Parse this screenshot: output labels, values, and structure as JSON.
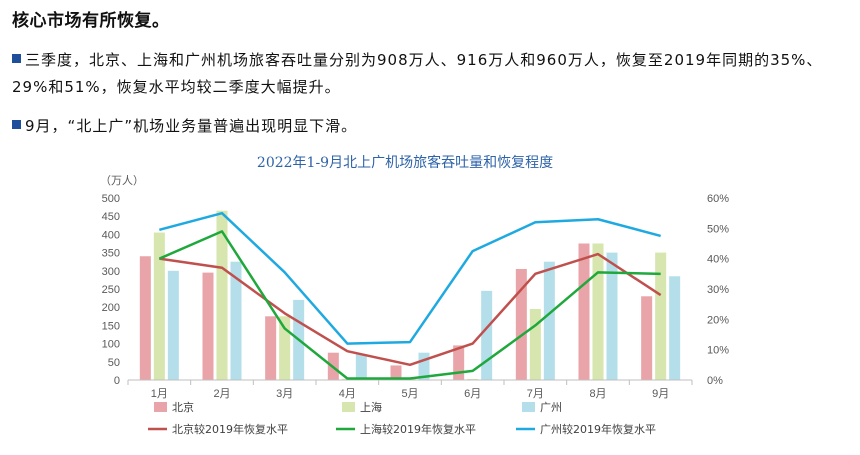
{
  "heading": "核心市场有所恢复。",
  "bullets": [
    "三季度，北京、上海和广州机场旅客吞吐量分别为908万人、916万人和960万人，恢复至2019年同期的35%、29%和51%，恢复水平均较二季度大幅提升。",
    "9月，“北上广”机场业务量普遍出现明显下滑。"
  ],
  "chart_data": {
    "type": "bar",
    "title": "2022年1-9月北上广机场旅客吞吐量和恢复程度",
    "ylabel": "（万人）",
    "categories": [
      "1月",
      "2月",
      "3月",
      "4月",
      "5月",
      "6月",
      "7月",
      "8月",
      "9月"
    ],
    "ylim": [
      0,
      500
    ],
    "y_ticks": [
      "0",
      "50",
      "100",
      "150",
      "200",
      "250",
      "300",
      "350",
      "400",
      "450",
      "500"
    ],
    "y2lim": [
      0,
      60
    ],
    "y2_ticks": [
      "0%",
      "10%",
      "20%",
      "30%",
      "40%",
      "50%",
      "60%"
    ],
    "series": [
      {
        "name": "北京",
        "kind": "bar",
        "axis": "left",
        "color": "#e8a4a8",
        "values": [
          340,
          295,
          175,
          75,
          40,
          95,
          305,
          375,
          230
        ]
      },
      {
        "name": "上海",
        "kind": "bar",
        "axis": "left",
        "color": "#d6e6ae",
        "values": [
          405,
          465,
          175,
          3,
          3,
          3,
          195,
          375,
          350
        ]
      },
      {
        "name": "广州",
        "kind": "bar",
        "axis": "left",
        "color": "#b4dfea",
        "values": [
          300,
          325,
          220,
          70,
          75,
          245,
          325,
          350,
          285
        ]
      },
      {
        "name": "北京较2019年恢复水平",
        "kind": "line",
        "axis": "right",
        "color": "#c0504d",
        "values": [
          40,
          37,
          22,
          9.5,
          5,
          12,
          35,
          41.5,
          28
        ]
      },
      {
        "name": "上海较2019年恢复水平",
        "kind": "line",
        "axis": "right",
        "color": "#1fa83c",
        "values": [
          40,
          49,
          17,
          0.5,
          0.5,
          3,
          18,
          35.5,
          35
        ]
      },
      {
        "name": "广州较2019年恢复水平",
        "kind": "line",
        "axis": "right",
        "color": "#1fa9e1",
        "values": [
          49.5,
          55,
          35.5,
          12,
          12.5,
          42.5,
          52,
          53,
          47.5
        ]
      }
    ],
    "grid": false,
    "legend_position": "bottom"
  }
}
